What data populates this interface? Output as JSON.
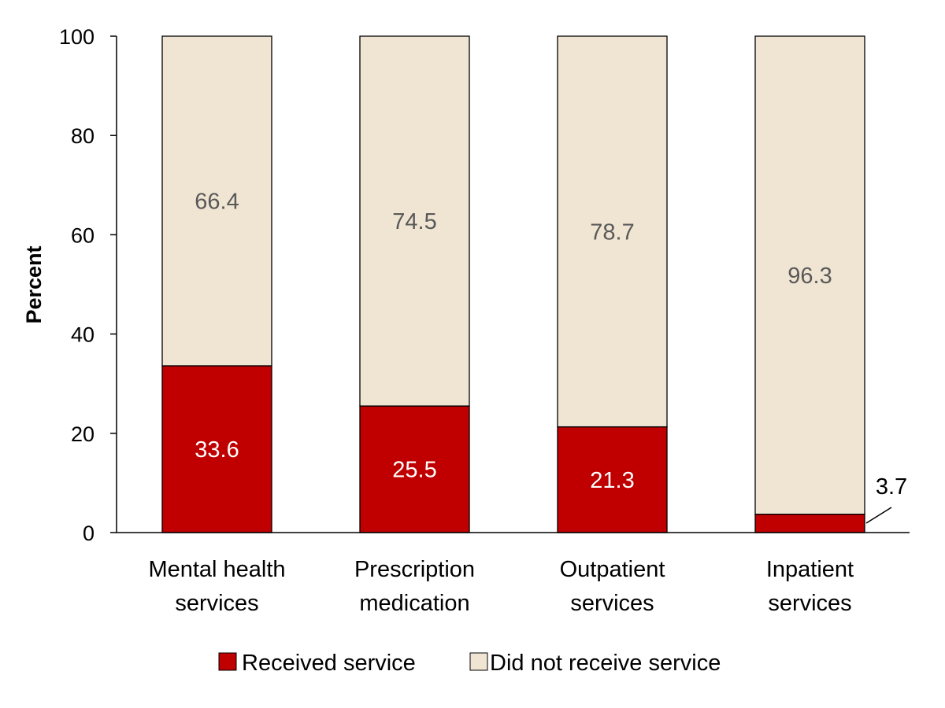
{
  "chart_data": {
    "type": "bar",
    "stacked": true,
    "categories": [
      [
        "Mental health",
        "services"
      ],
      [
        "Prescription",
        "medication"
      ],
      [
        "Outpatient",
        "services"
      ],
      [
        "Inpatient",
        "services"
      ]
    ],
    "series": [
      {
        "name": "Received service",
        "values": [
          33.6,
          25.5,
          21.3,
          3.7
        ],
        "color": "#C00000",
        "label_color": "#FFFFFF"
      },
      {
        "name": "Did not receive service",
        "values": [
          66.4,
          74.5,
          78.7,
          96.3
        ],
        "color": "#F0E5D3",
        "label_color": "#595959"
      }
    ],
    "value_labels": {
      "received": [
        "33.6",
        "25.5",
        "21.3",
        "3.7"
      ],
      "not_received": [
        "66.4",
        "74.5",
        "78.7",
        "96.3"
      ]
    },
    "title": "",
    "xlabel": "",
    "ylabel": "Percent",
    "ylim": [
      0,
      100
    ],
    "yticks": [
      "0",
      "20",
      "40",
      "60",
      "80",
      "100"
    ],
    "grid": false,
    "legend": "bottom"
  }
}
